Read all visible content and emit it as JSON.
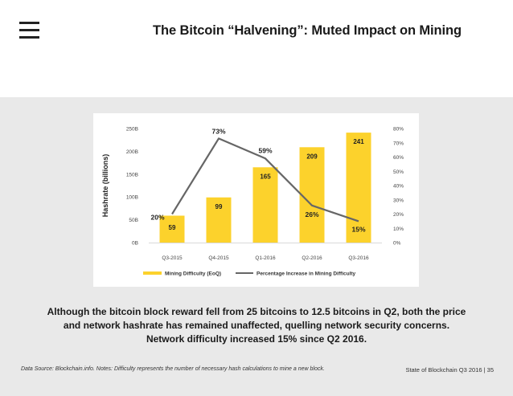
{
  "header": {
    "title": "The Bitcoin “Halvening”: Muted Impact on Mining",
    "menu_icon": "hamburger-menu-icon"
  },
  "chart_data": {
    "type": "bar",
    "categories": [
      "Q3-2015",
      "Q4-2015",
      "Q1-2016",
      "Q2-2016",
      "Q3-2016"
    ],
    "series": [
      {
        "name": "Mining Difficulty (EoQ)",
        "type": "bar",
        "axis": "left",
        "values": [
          59,
          99,
          165,
          209,
          241
        ],
        "labels": [
          "59",
          "99",
          "165",
          "209",
          "241"
        ],
        "color": "#fcd22c"
      },
      {
        "name": "Percentage Increase in Mining Difficulty",
        "type": "line",
        "axis": "right",
        "values": [
          20,
          73,
          59,
          26,
          15
        ],
        "labels": [
          "20%",
          "73%",
          "59%",
          "26%",
          "15%"
        ],
        "color": "#666666"
      }
    ],
    "ylabel": "Hashrate (billions)",
    "ylim": [
      0,
      250
    ],
    "yticks": [
      "0B",
      "50B",
      "100B",
      "150B",
      "200B",
      "250B"
    ],
    "y2lim": [
      0,
      80
    ],
    "y2ticks": [
      "0%",
      "10%",
      "20%",
      "30%",
      "40%",
      "50%",
      "60%",
      "70%",
      "80%"
    ],
    "legend_position": "bottom"
  },
  "caption": {
    "line1": "Although the bitcoin block reward fell from 25 bitcoins to 12.5 bitcoins in Q2, both the price",
    "line2": "and network hashrate has remained unaffected, quelling network security concerns.",
    "line3": "Network difficulty increased 15% since Q2 2016."
  },
  "footer": {
    "source": "Data Source: Blockchain.info. Notes: Difficulty represents the number of necessary hash calculations to mine a new block.",
    "page": "State of Blockchain Q3 2016  |  35"
  }
}
